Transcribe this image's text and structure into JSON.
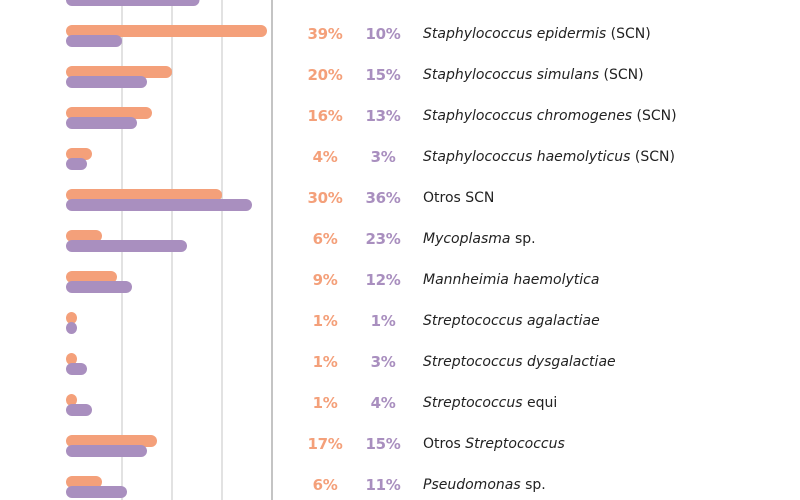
{
  "chart_data": {
    "type": "bar",
    "orientation": "horizontal",
    "grid": true,
    "xlim": [
      0,
      40
    ],
    "colors": {
      "series_a": "#F4A07A",
      "series_b": "#A98FBF"
    },
    "categories": [
      [
        {
          "t": "Staphylococcus epidermis",
          "i": true
        },
        {
          "t": " (SCN)",
          "i": false
        }
      ],
      [
        {
          "t": "Staphylococcus simulans",
          "i": true
        },
        {
          "t": " (SCN)",
          "i": false
        }
      ],
      [
        {
          "t": "Staphylococcus chromogenes",
          "i": true
        },
        {
          "t": " (SCN)",
          "i": false
        }
      ],
      [
        {
          "t": "Staphylococcus haemolyticus",
          "i": true
        },
        {
          "t": " (SCN)",
          "i": false
        }
      ],
      [
        {
          "t": "Otros SCN",
          "i": false
        }
      ],
      [
        {
          "t": "Mycoplasma",
          "i": true
        },
        {
          "t": " sp.",
          "i": false
        }
      ],
      [
        {
          "t": "Mannheimia haemolytica",
          "i": true
        }
      ],
      [
        {
          "t": "Streptococcus agalactiae",
          "i": true
        }
      ],
      [
        {
          "t": "Streptococcus dysgalactiae",
          "i": true
        }
      ],
      [
        {
          "t": "Streptococcus",
          "i": true
        },
        {
          "t": " equi",
          "i": false
        }
      ],
      [
        {
          "t": "Otros ",
          "i": false
        },
        {
          "t": "Streptococcus",
          "i": true
        }
      ],
      [
        {
          "t": "Pseudomonas",
          "i": true
        },
        {
          "t": " sp.",
          "i": false
        }
      ]
    ],
    "series": [
      {
        "values": [
          39,
          20,
          16,
          4,
          30,
          6,
          9,
          1,
          1,
          1,
          17,
          6
        ],
        "labels": [
          "39%",
          "20%",
          "16%",
          "4%",
          "30%",
          "6%",
          "9%",
          "1%",
          "1%",
          "1%",
          "17%",
          "6%"
        ]
      },
      {
        "values": [
          10,
          15,
          13,
          3,
          36,
          23,
          12,
          1,
          3,
          4,
          15,
          11
        ],
        "labels": [
          "10%",
          "15%",
          "13%",
          "3%",
          "36%",
          "23%",
          "12%",
          "1%",
          "3%",
          "4%",
          "15%",
          "11%"
        ]
      }
    ]
  }
}
